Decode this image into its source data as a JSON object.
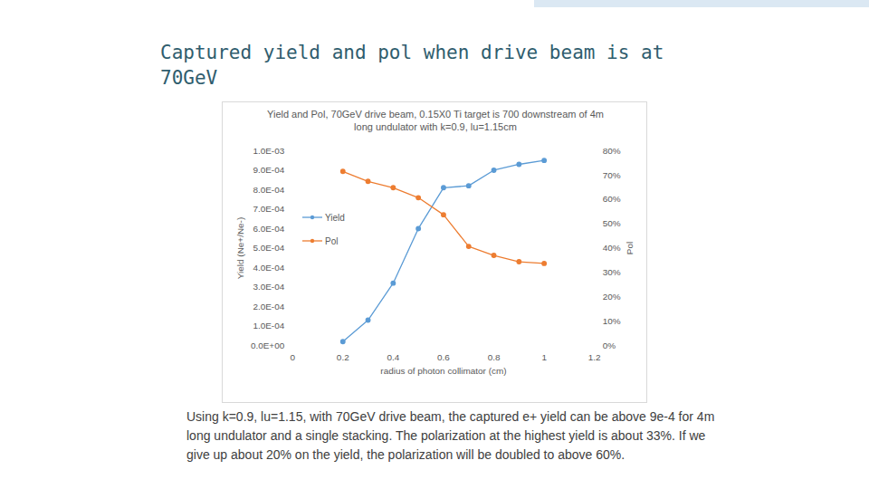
{
  "title": "Captured yield and pol when drive beam is at 70GeV",
  "caption": "Using k=0.9, lu=1.15, with 70GeV drive beam, the captured e+ yield can be above 9e-4 for 4m long undulator and a single stacking. The polarization at the highest yield is about 33%. If we give up about 20% on the yield, the polarization will be doubled to above 60%.",
  "chart_data": {
    "type": "line",
    "title": "Yield and Pol, 70GeV drive beam, 0.15X0 Ti target is 700 downstream of 4m long undulator with k=0.9, lu=1.15cm",
    "x_label": "radius of photon collimator (cm)",
    "y_label": "Yield (Ne+/Ne-)",
    "y2_label": "Pol",
    "x": [
      0.2,
      0.3,
      0.4,
      0.5,
      0.6,
      0.7,
      0.8,
      0.9,
      1.0
    ],
    "series": [
      {
        "name": "Yield",
        "color": "#5b9bd5",
        "marker": "circle",
        "values": [
          2e-05,
          0.00013,
          0.00032,
          0.0006,
          0.00081,
          0.00082,
          0.0009,
          0.00093,
          0.00095
        ]
      },
      {
        "name": "Pol",
        "color": "#ed7d31",
        "marker": "circle",
        "axis": "y2",
        "values": [
          71.5,
          67.4,
          64.8,
          60.7,
          53.7,
          40.7,
          37,
          34.4,
          33.7
        ]
      }
    ],
    "xlim": [
      0,
      1.2
    ],
    "xticks": [
      0,
      0.2,
      0.4,
      0.6,
      0.8,
      1,
      1.2
    ],
    "ylim": [
      0,
      0.001
    ],
    "yticks": [
      {
        "value": 0,
        "label": "0.0E+00"
      },
      {
        "value": 0.0001,
        "label": "1.0E-04"
      },
      {
        "value": 0.0002,
        "label": "2.0E-04"
      },
      {
        "value": 0.0003,
        "label": "3.0E-04"
      },
      {
        "value": 0.0004,
        "label": "4.0E-04"
      },
      {
        "value": 0.0005,
        "label": "5.0E-04"
      },
      {
        "value": 0.0006,
        "label": "6.0E-04"
      },
      {
        "value": 0.0007,
        "label": "7.0E-04"
      },
      {
        "value": 0.0008,
        "label": "8.0E-04"
      },
      {
        "value": 0.0009,
        "label": "9.0E-04"
      },
      {
        "value": 0.001,
        "label": "1.0E-03"
      }
    ],
    "y2lim": [
      0,
      80
    ],
    "y2ticks": [
      {
        "value": 0,
        "label": "0%"
      },
      {
        "value": 10,
        "label": "10%"
      },
      {
        "value": 20,
        "label": "20%"
      },
      {
        "value": 30,
        "label": "30%"
      },
      {
        "value": 40,
        "label": "40%"
      },
      {
        "value": 50,
        "label": "50%"
      },
      {
        "value": 60,
        "label": "60%"
      },
      {
        "value": 70,
        "label": "70%"
      },
      {
        "value": 80,
        "label": "80%"
      }
    ],
    "legend": "left",
    "grid": false
  }
}
